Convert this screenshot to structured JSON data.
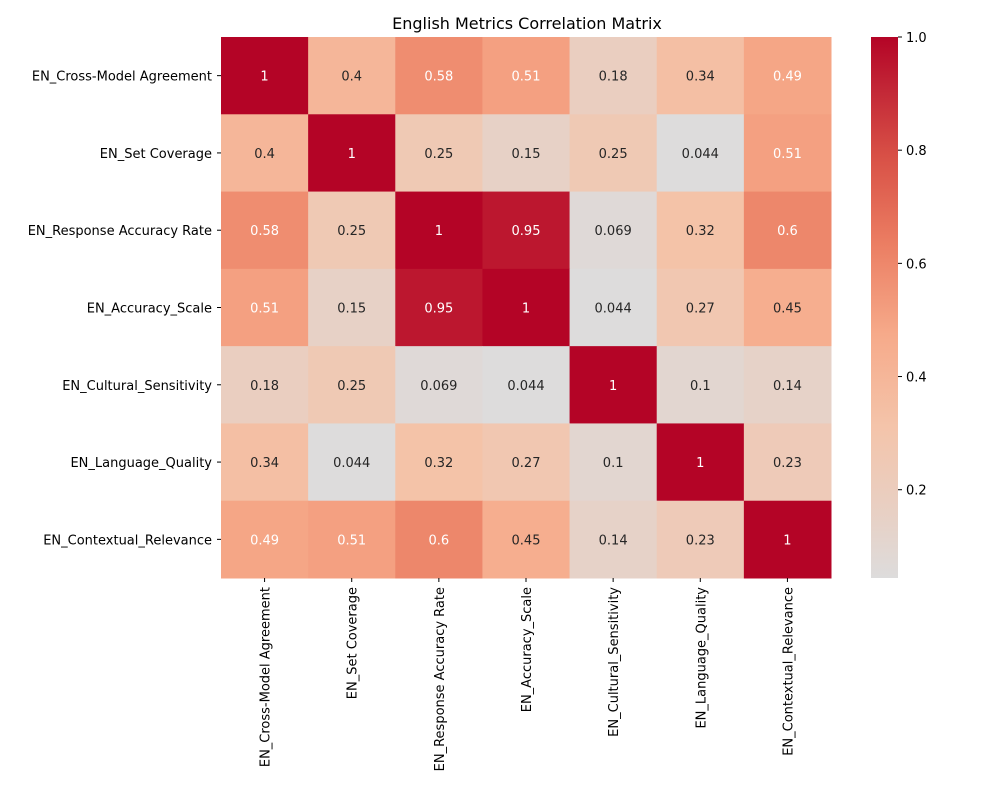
{
  "chart_data": {
    "type": "heatmap",
    "title": "English Metrics Correlation Matrix",
    "xlabel": "",
    "ylabel": "",
    "x_labels": [
      "EN_Cross-Model Agreement",
      "EN_Set Coverage",
      "EN_Response Accuracy Rate",
      "EN_Accuracy_Scale",
      "EN_Cultural_Sensitivity",
      "EN_Language_Quality",
      "EN_Contextual_Relevance"
    ],
    "y_labels": [
      "EN_Cross-Model Agreement",
      "EN_Set Coverage",
      "EN_Response Accuracy Rate",
      "EN_Accuracy_Scale",
      "EN_Cultural_Sensitivity",
      "EN_Language_Quality",
      "EN_Contextual_Relevance"
    ],
    "values": [
      [
        1,
        0.4,
        0.58,
        0.51,
        0.18,
        0.34,
        0.49
      ],
      [
        0.4,
        1,
        0.25,
        0.15,
        0.25,
        0.044,
        0.51
      ],
      [
        0.58,
        0.25,
        1,
        0.95,
        0.069,
        0.32,
        0.6
      ],
      [
        0.51,
        0.15,
        0.95,
        1,
        0.044,
        0.27,
        0.45
      ],
      [
        0.18,
        0.25,
        0.069,
        0.044,
        1,
        0.1,
        0.14
      ],
      [
        0.34,
        0.044,
        0.32,
        0.27,
        0.1,
        1,
        0.23
      ],
      [
        0.49,
        0.51,
        0.6,
        0.45,
        0.14,
        0.23,
        1
      ]
    ],
    "cell_labels": [
      [
        "1",
        "0.4",
        "0.58",
        "0.51",
        "0.18",
        "0.34",
        "0.49"
      ],
      [
        "0.4",
        "1",
        "0.25",
        "0.15",
        "0.25",
        "0.044",
        "0.51"
      ],
      [
        "0.58",
        "0.25",
        "1",
        "0.95",
        "0.069",
        "0.32",
        "0.6"
      ],
      [
        "0.51",
        "0.15",
        "0.95",
        "1",
        "0.044",
        "0.27",
        "0.45"
      ],
      [
        "0.18",
        "0.25",
        "0.069",
        "0.044",
        "1",
        "0.1",
        "0.14"
      ],
      [
        "0.34",
        "0.044",
        "0.32",
        "0.27",
        "0.1",
        "1",
        "0.23"
      ],
      [
        "0.49",
        "0.51",
        "0.6",
        "0.45",
        "0.14",
        "0.23",
        "1"
      ]
    ],
    "colorbar": {
      "range": [
        0.044,
        1.0
      ],
      "ticks": [
        0.2,
        0.4,
        0.6,
        0.8,
        1.0
      ],
      "tick_labels": [
        "0.2",
        "0.4",
        "0.6",
        "0.8",
        "1.0"
      ],
      "colormap": "coolwarm"
    },
    "grid": false,
    "annotations": true
  }
}
